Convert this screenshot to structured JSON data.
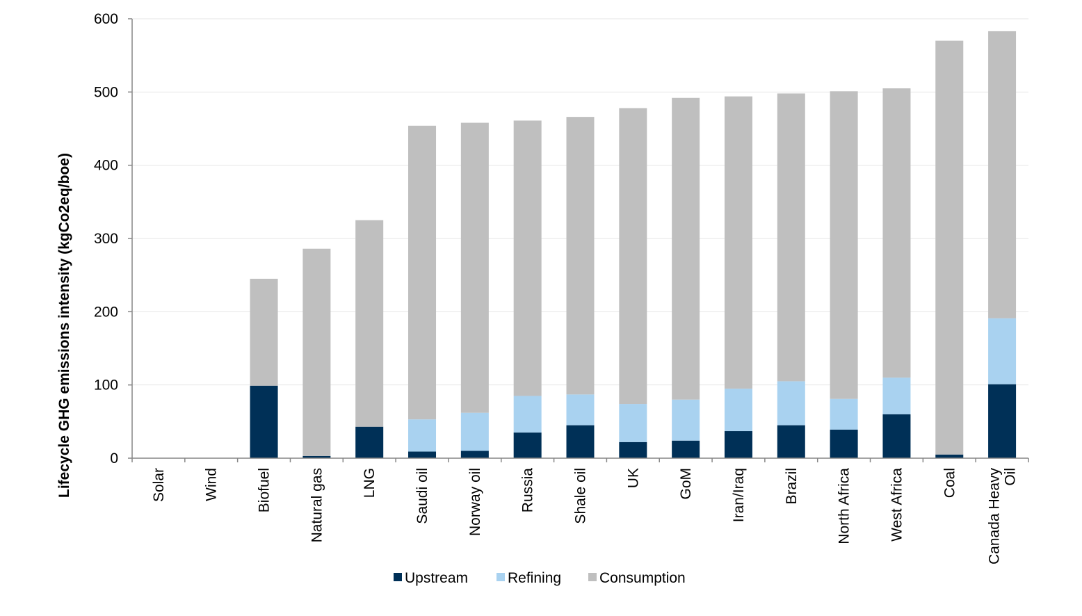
{
  "chart_data": {
    "type": "bar",
    "stacked": true,
    "title": "",
    "xlabel": "",
    "ylabel": "Lifecycle GHG emissions intensity (kgCo2eq/boe)",
    "ylim": [
      0,
      600
    ],
    "yticks": [
      0,
      100,
      200,
      300,
      400,
      500,
      600
    ],
    "grid": true,
    "legend_position": "bottom",
    "categories": [
      "Solar",
      "Wind",
      "Biofuel",
      "Natural gas",
      "LNG",
      "Saudi oil",
      "Norway oil",
      "Russia",
      "Shale oil",
      "UK",
      "GoM",
      "Iran/Iraq",
      "Brazil",
      "North Africa",
      "West Africa",
      "Coal",
      "Canada Heavy Oil"
    ],
    "series": [
      {
        "name": "Upstream",
        "color": "#003057",
        "values": [
          0,
          0,
          99,
          3,
          43,
          9,
          10,
          35,
          45,
          22,
          24,
          37,
          45,
          39,
          60,
          5,
          101
        ]
      },
      {
        "name": "Refining",
        "color": "#A9D2F0",
        "values": [
          0,
          0,
          0,
          0,
          0,
          44,
          52,
          50,
          42,
          52,
          56,
          58,
          60,
          42,
          50,
          0,
          90
        ]
      },
      {
        "name": "Consumption",
        "color": "#BFBFBF",
        "values": [
          0,
          0,
          146,
          283,
          282,
          401,
          396,
          376,
          379,
          404,
          412,
          399,
          393,
          420,
          395,
          565,
          392
        ]
      }
    ]
  }
}
